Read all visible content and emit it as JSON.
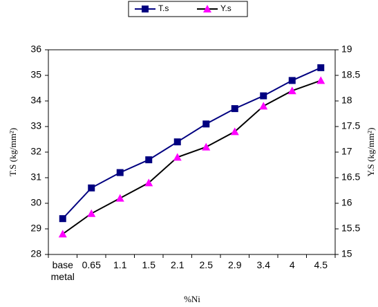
{
  "chart_data": {
    "type": "line",
    "x_label": "%Ni",
    "y_label": "T.S (kg/mm²)",
    "y2_label": "Y.S (kg/mm²)",
    "categories": [
      "base metal",
      "0.65",
      "1.1",
      "1.5",
      "2.1",
      "2.5",
      "2.9",
      "3.4",
      "4",
      "4.5"
    ],
    "series": [
      {
        "name": "T.s",
        "color": "#000080",
        "marker_color": "#000080",
        "marker": "square",
        "values": [
          29.4,
          30.6,
          31.2,
          31.7,
          32.4,
          33.1,
          33.7,
          34.2,
          34.8,
          35.3
        ]
      },
      {
        "name": "Y.s",
        "color": "#000000",
        "marker_color": "#ff00ff",
        "marker": "triangle",
        "axis": "y2",
        "values": [
          15.4,
          15.8,
          16.1,
          16.4,
          16.9,
          17.1,
          17.4,
          17.9,
          18.2,
          18.4
        ]
      }
    ],
    "ylim": [
      28,
      36
    ],
    "yticks": [
      28,
      29,
      30,
      31,
      32,
      33,
      34,
      35,
      36
    ],
    "y2lim": [
      15,
      19
    ],
    "y2ticks": [
      15,
      15.5,
      16,
      16.5,
      17,
      17.5,
      18,
      18.5,
      19
    ],
    "legend": "top"
  }
}
